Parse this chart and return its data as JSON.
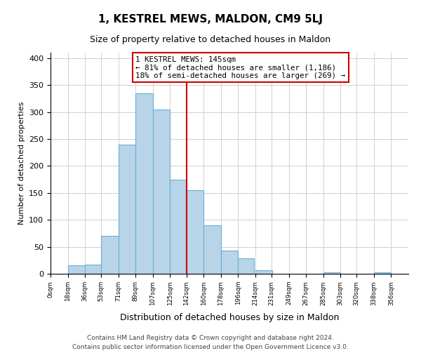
{
  "title": "1, KESTREL MEWS, MALDON, CM9 5LJ",
  "subtitle": "Size of property relative to detached houses in Maldon",
  "xlabel": "Distribution of detached houses by size in Maldon",
  "ylabel": "Number of detached properties",
  "bar_left_edges": [
    0,
    18,
    36,
    53,
    71,
    89,
    107,
    125,
    142,
    160,
    178,
    196,
    214,
    231,
    249,
    267,
    285,
    303,
    320,
    338
  ],
  "bar_heights": [
    0,
    15,
    17,
    70,
    240,
    335,
    305,
    175,
    155,
    90,
    43,
    28,
    7,
    0,
    0,
    0,
    2,
    0,
    0,
    2
  ],
  "bar_widths": [
    18,
    18,
    17,
    18,
    18,
    18,
    18,
    17,
    18,
    18,
    18,
    17,
    18,
    18,
    18,
    18,
    18,
    17,
    18,
    18
  ],
  "tick_labels": [
    "0sqm",
    "18sqm",
    "36sqm",
    "53sqm",
    "71sqm",
    "89sqm",
    "107sqm",
    "125sqm",
    "142sqm",
    "160sqm",
    "178sqm",
    "196sqm",
    "214sqm",
    "231sqm",
    "249sqm",
    "267sqm",
    "285sqm",
    "303sqm",
    "320sqm",
    "338sqm",
    "356sqm"
  ],
  "tick_positions": [
    0,
    18,
    36,
    53,
    71,
    89,
    107,
    125,
    142,
    160,
    178,
    196,
    214,
    231,
    249,
    267,
    285,
    303,
    320,
    338,
    356
  ],
  "bar_color": "#b8d4e8",
  "bar_edge_color": "#6aaed6",
  "vline_x": 142,
  "vline_color": "#cc0000",
  "annotation_title": "1 KESTREL MEWS: 145sqm",
  "annotation_line1": "← 81% of detached houses are smaller (1,186)",
  "annotation_line2": "18% of semi-detached houses are larger (269) →",
  "annotation_box_color": "#ffffff",
  "annotation_box_edge": "#cc0000",
  "ylim": [
    0,
    410
  ],
  "xlim": [
    0,
    374
  ],
  "yticks": [
    0,
    50,
    100,
    150,
    200,
    250,
    300,
    350,
    400
  ],
  "footer1": "Contains HM Land Registry data © Crown copyright and database right 2024.",
  "footer2": "Contains public sector information licensed under the Open Government Licence v3.0.",
  "background_color": "#ffffff",
  "grid_color": "#d0d0d0",
  "title_fontsize": 11,
  "subtitle_fontsize": 9,
  "ylabel_fontsize": 8,
  "xlabel_fontsize": 9
}
